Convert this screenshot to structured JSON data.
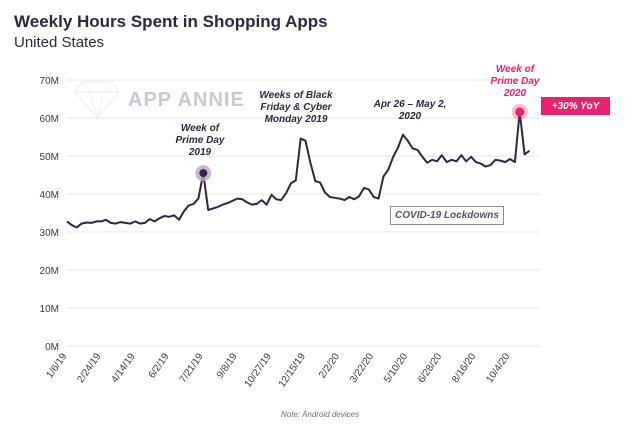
{
  "header": {
    "title": "Weekly Hours Spent in Shopping Apps",
    "subtitle": "United States"
  },
  "watermark": {
    "text": "APP ANNIE"
  },
  "note": "Note: Android devices",
  "badge": "+30% YoY",
  "covid_label": "COVID-19 Lockdowns",
  "colors": {
    "line": "#2a2a3c",
    "accent": "#e8226d",
    "marker": "#2d2648",
    "marker_halo": "#b9a8c6",
    "grid": "#e4e4ea"
  },
  "chart_data": {
    "type": "line",
    "title": "Weekly Hours Spent in Shopping Apps",
    "subtitle": "United States",
    "ylim": [
      0,
      70
    ],
    "y_unit": "M",
    "y_ticks": [
      "0M",
      "10M",
      "20M",
      "30M",
      "40M",
      "50M",
      "60M",
      "70M"
    ],
    "x_tick_labels": [
      "1/6/19",
      "2/24/19",
      "4/14/19",
      "6/2/19",
      "7/21/19",
      "9/8/19",
      "10/27/19",
      "12/15/19",
      "2/2/20",
      "3/22/20",
      "5/10/20",
      "6/28/20",
      "8/16/20",
      "10/4/20"
    ],
    "grid": true,
    "x": [
      "1/6/19",
      "1/13/19",
      "1/20/19",
      "1/27/19",
      "2/3/19",
      "2/10/19",
      "2/17/19",
      "2/24/19",
      "3/3/19",
      "3/10/19",
      "3/17/19",
      "3/24/19",
      "3/31/19",
      "4/7/19",
      "4/14/19",
      "4/21/19",
      "4/28/19",
      "5/5/19",
      "5/12/19",
      "5/19/19",
      "5/26/19",
      "6/2/19",
      "6/9/19",
      "6/16/19",
      "6/23/19",
      "6/30/19",
      "7/7/19",
      "7/14/19",
      "7/21/19",
      "7/28/19",
      "8/4/19",
      "8/11/19",
      "8/18/19",
      "8/25/19",
      "9/1/19",
      "9/8/19",
      "9/15/19",
      "9/22/19",
      "9/29/19",
      "10/6/19",
      "10/13/19",
      "10/20/19",
      "10/27/19",
      "11/3/19",
      "11/10/19",
      "11/17/19",
      "11/24/19",
      "12/1/19",
      "12/8/19",
      "12/15/19",
      "12/22/19",
      "12/29/19",
      "1/5/20",
      "1/12/20",
      "1/19/20",
      "1/26/20",
      "2/2/20",
      "2/9/20",
      "2/16/20",
      "2/23/20",
      "3/1/20",
      "3/8/20",
      "3/15/20",
      "3/22/20",
      "3/29/20",
      "4/5/20",
      "4/12/20",
      "4/19/20",
      "4/26/20",
      "5/3/20",
      "5/10/20",
      "5/17/20",
      "5/24/20",
      "5/31/20",
      "6/7/20",
      "6/14/20",
      "6/21/20",
      "6/28/20",
      "7/5/20",
      "7/12/20",
      "7/19/20",
      "7/26/20",
      "8/2/20",
      "8/9/20",
      "8/16/20",
      "8/23/20",
      "8/30/20",
      "9/6/20",
      "9/13/20",
      "9/20/20",
      "9/27/20",
      "10/4/20",
      "10/11/20",
      "10/18/20",
      "10/25/20",
      "11/1/20"
    ],
    "series": [
      {
        "values": [
          32.8,
          31.8,
          31.2,
          32.2,
          32.5,
          32.4,
          32.8,
          32.8,
          33.2,
          32.4,
          32.2,
          32.6,
          32.4,
          32.2,
          32.8,
          32.2,
          32.4,
          33.4,
          32.8,
          33.6,
          34.2,
          34.0,
          34.4,
          33.2,
          35.4,
          37.0,
          37.4,
          38.8,
          45.5,
          35.8,
          36.2,
          36.6,
          37.2,
          37.6,
          38.2,
          38.8,
          38.6,
          37.8,
          37.2,
          37.4,
          38.4,
          37.2,
          39.8,
          38.6,
          38.4,
          40.2,
          42.8,
          43.6,
          54.6,
          54.0,
          48.2,
          43.4,
          43.0,
          40.4,
          39.2,
          39.0,
          38.8,
          38.4,
          39.2,
          38.6,
          39.4,
          41.6,
          41.2,
          39.2,
          38.8,
          44.6,
          46.4,
          49.8,
          52.2,
          55.6,
          54.0,
          52.0,
          51.6,
          49.8,
          48.2,
          49.0,
          48.6,
          50.2,
          48.4,
          49.0,
          48.6,
          50.2,
          48.6,
          49.8,
          48.4,
          48.0,
          47.2,
          47.6,
          49.0,
          48.8,
          48.4,
          49.2,
          48.4,
          61.6,
          50.4,
          51.4
        ]
      }
    ],
    "annotations": [
      {
        "label_lines": [
          "Week of",
          "Prime Day",
          "2019"
        ],
        "date": "7/21/19",
        "value": 45.5
      },
      {
        "label_lines": [
          "Weeks of Black",
          "Friday & Cyber",
          "Monday 2019"
        ],
        "date": "12/8/19",
        "value": 54.6
      },
      {
        "label_lines": [
          "Apr 26 – May 2,",
          "2020"
        ],
        "date": "5/3/20",
        "value": 55.6
      },
      {
        "label_lines": [
          "Week of",
          "Prime Day",
          "2020"
        ],
        "date": "10/18/20",
        "value": 61.6
      }
    ]
  }
}
